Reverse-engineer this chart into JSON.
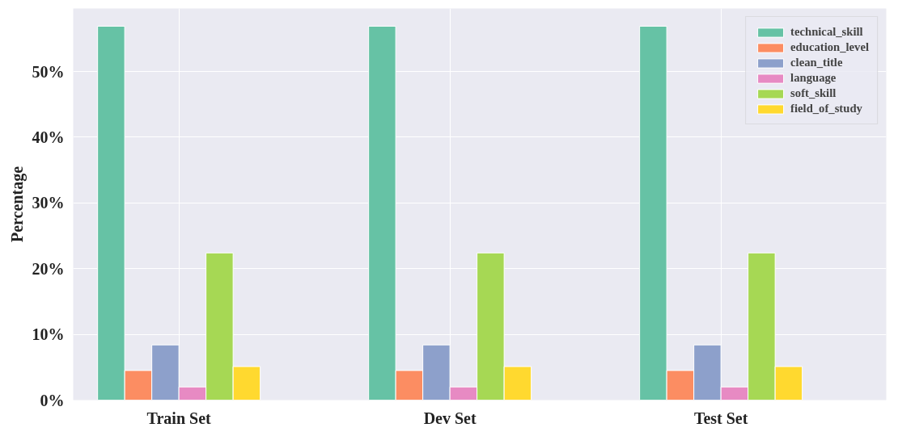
{
  "chart_data": {
    "type": "bar",
    "ylabel": "Percentage",
    "categories": [
      "Train Set",
      "Dev Set",
      "Test Set"
    ],
    "series": [
      {
        "name": "technical_skill",
        "color": "#66c2a5",
        "values": [
          56.9,
          56.9,
          56.9
        ]
      },
      {
        "name": "education_level",
        "color": "#fc8d62",
        "values": [
          4.5,
          4.5,
          4.5
        ]
      },
      {
        "name": "clean_title",
        "color": "#8da0cb",
        "values": [
          8.4,
          8.4,
          8.4
        ]
      },
      {
        "name": "language",
        "color": "#e78ac3",
        "values": [
          2.0,
          2.0,
          2.0
        ]
      },
      {
        "name": "soft_skill",
        "color": "#a6d854",
        "values": [
          22.4,
          22.4,
          22.4
        ]
      },
      {
        "name": "field_of_study",
        "color": "#ffd92f",
        "values": [
          5.1,
          5.1,
          5.1
        ]
      }
    ],
    "ylim": [
      0,
      59.6
    ],
    "yticks": [
      {
        "value": 0,
        "label": "0%"
      },
      {
        "value": 10,
        "label": "10%"
      },
      {
        "value": 20,
        "label": "20%"
      },
      {
        "value": 30,
        "label": "30%"
      },
      {
        "value": 40,
        "label": "40%"
      },
      {
        "value": 50,
        "label": "50%"
      }
    ],
    "grid": true,
    "legend": "top right"
  }
}
